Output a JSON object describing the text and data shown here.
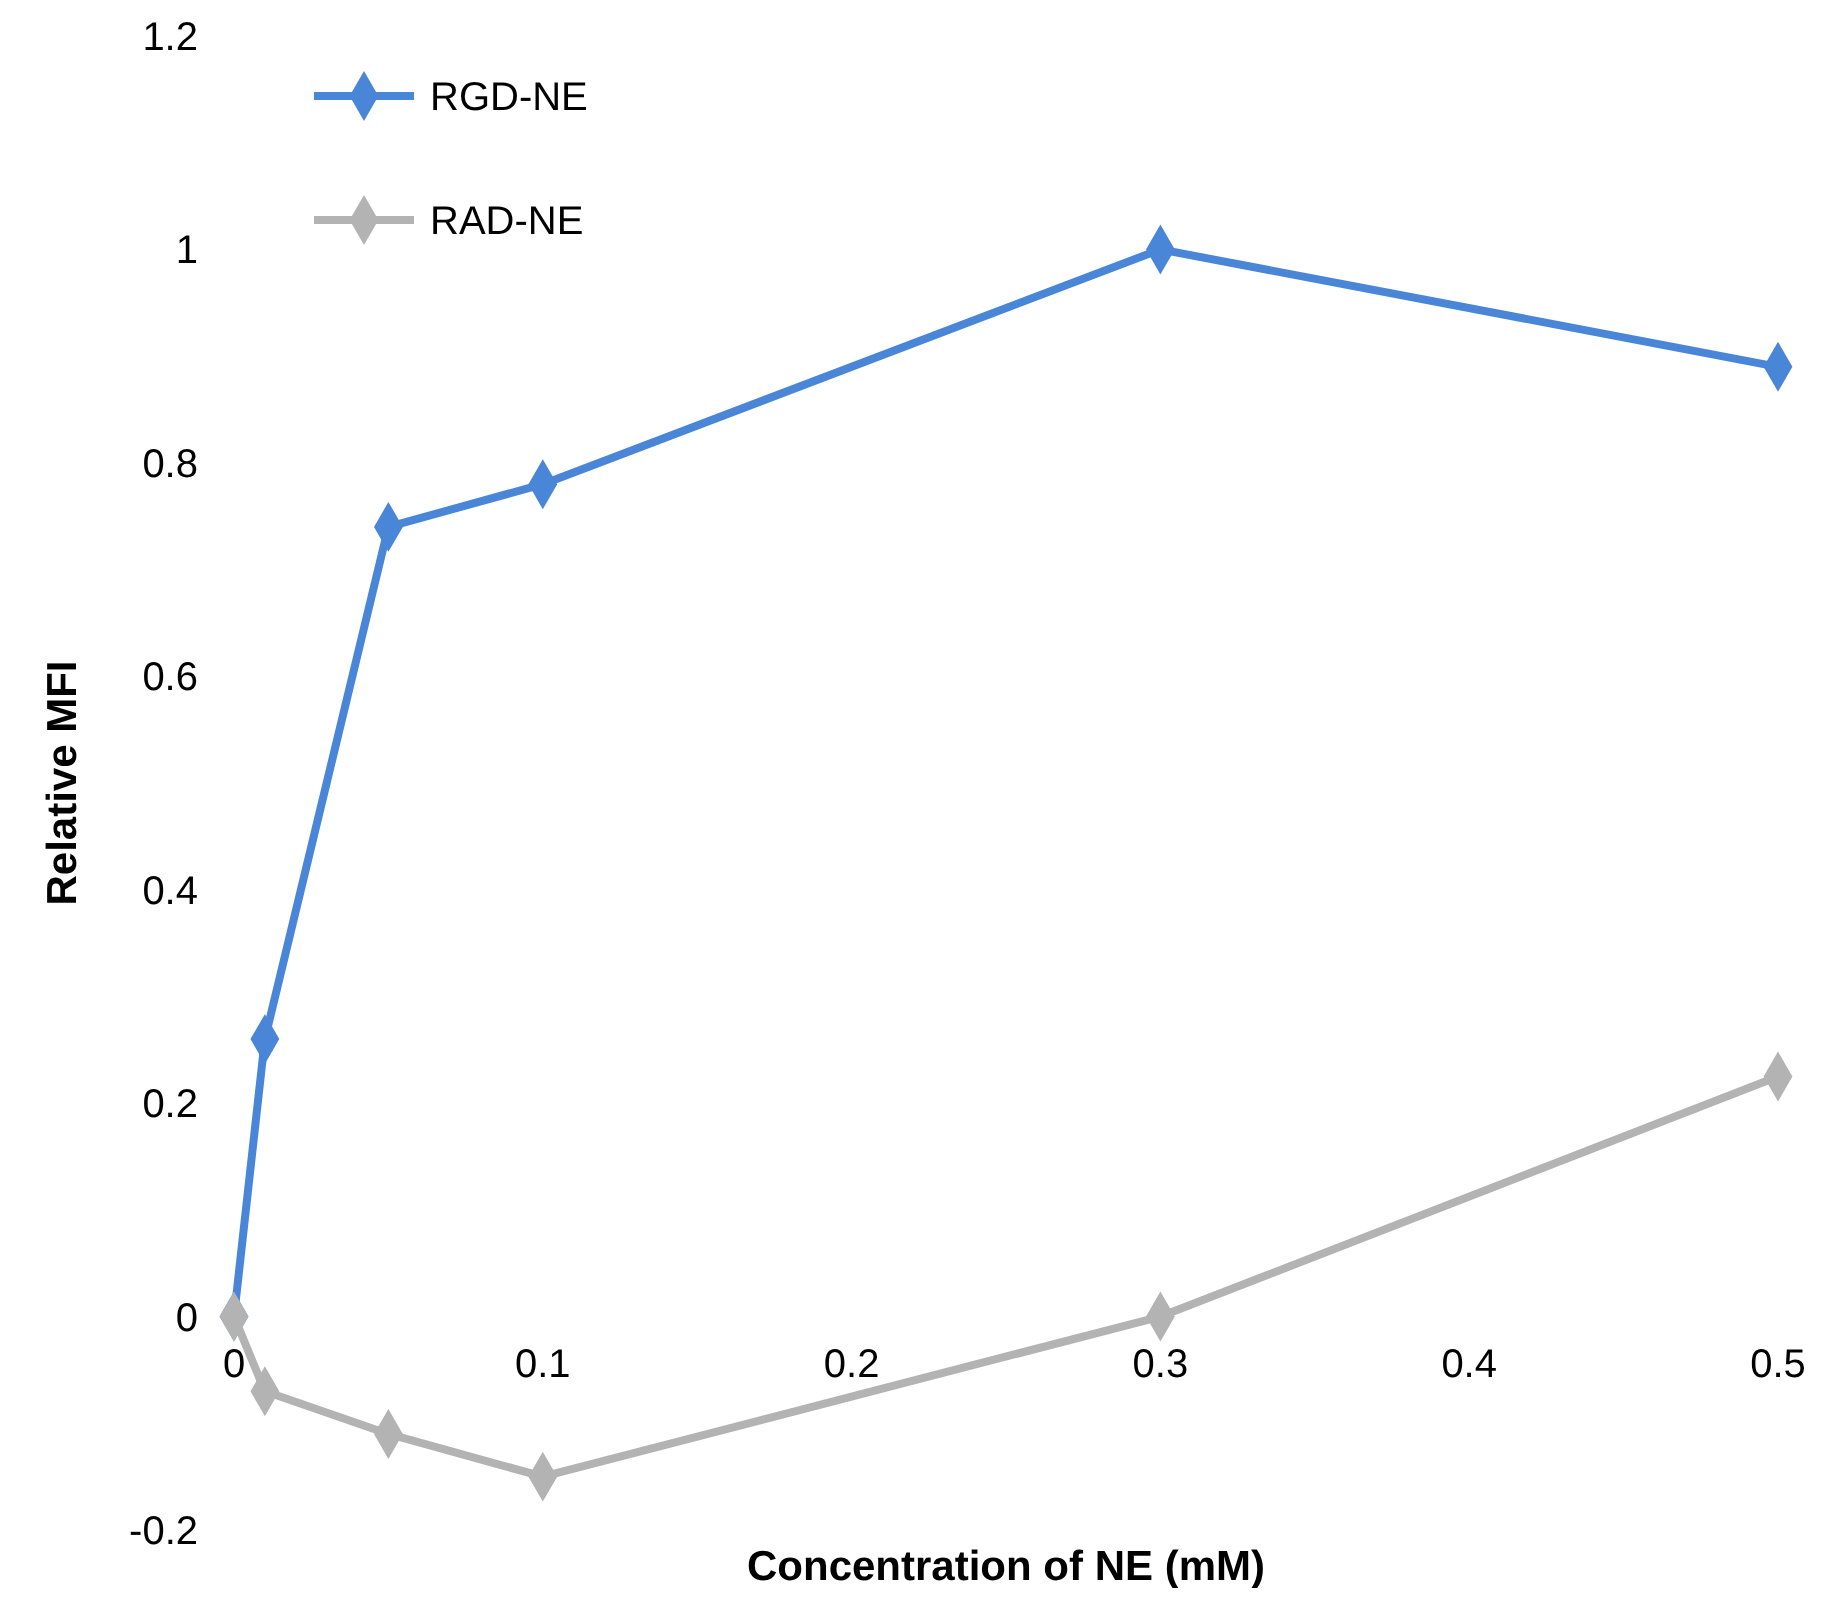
{
  "chart_data": {
    "type": "line",
    "xlabel": "Concentration of NE (mM)",
    "ylabel": "Relative MFI",
    "x": [
      0,
      0.01,
      0.05,
      0.1,
      0.3,
      0.5
    ],
    "series": [
      {
        "name": "RGD-NE",
        "color": "#4a86d8",
        "values": [
          0,
          0.26,
          0.74,
          0.78,
          1.0,
          0.89
        ]
      },
      {
        "name": "RAD-NE",
        "color": "#b3b3b3",
        "values": [
          0,
          -0.07,
          -0.11,
          -0.15,
          0,
          0.225
        ]
      }
    ],
    "xlim": [
      0,
      0.5
    ],
    "xticks": [
      0,
      0.1,
      0.2,
      0.3,
      0.4,
      0.5
    ],
    "ylim": [
      -0.2,
      1.2
    ],
    "yticks": [
      -0.2,
      0,
      0.2,
      0.4,
      0.6,
      0.8,
      1,
      1.2
    ],
    "marker": "diamond",
    "line_style": "solid",
    "legend": "top left",
    "grid": false
  }
}
